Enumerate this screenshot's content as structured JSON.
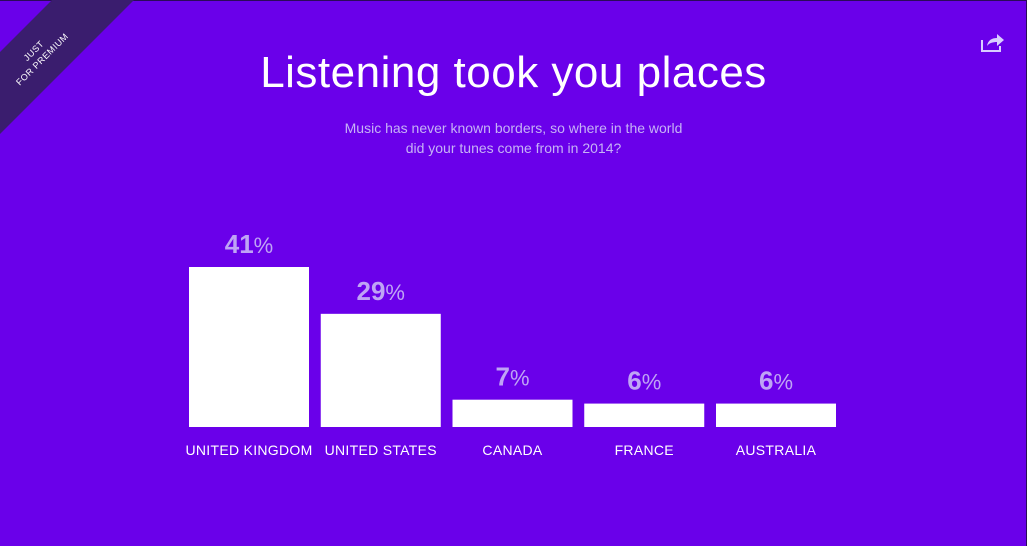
{
  "badge": {
    "line1": "JUST",
    "line2": "FOR PREMIUM"
  },
  "header": {
    "title": "Listening took you places",
    "subtitle_line1": "Music has never known borders, so where in the world",
    "subtitle_line2": "did your tunes come from in 2014?"
  },
  "icons": {
    "share": "share-icon"
  },
  "colors": {
    "background": "#6a00ea",
    "bar": "#ffffff",
    "value_label": "#bfa4f5"
  },
  "chart_data": {
    "type": "bar",
    "title": "Listening took you places",
    "categories": [
      "UNITED KINGDOM",
      "UNITED STATES",
      "CANADA",
      "FRANCE",
      "AUSTRALIA"
    ],
    "values": [
      41,
      29,
      7,
      6,
      6
    ],
    "value_suffix": "%",
    "xlabel": "",
    "ylabel": "",
    "ylim": [
      0,
      41
    ],
    "grid": false
  }
}
